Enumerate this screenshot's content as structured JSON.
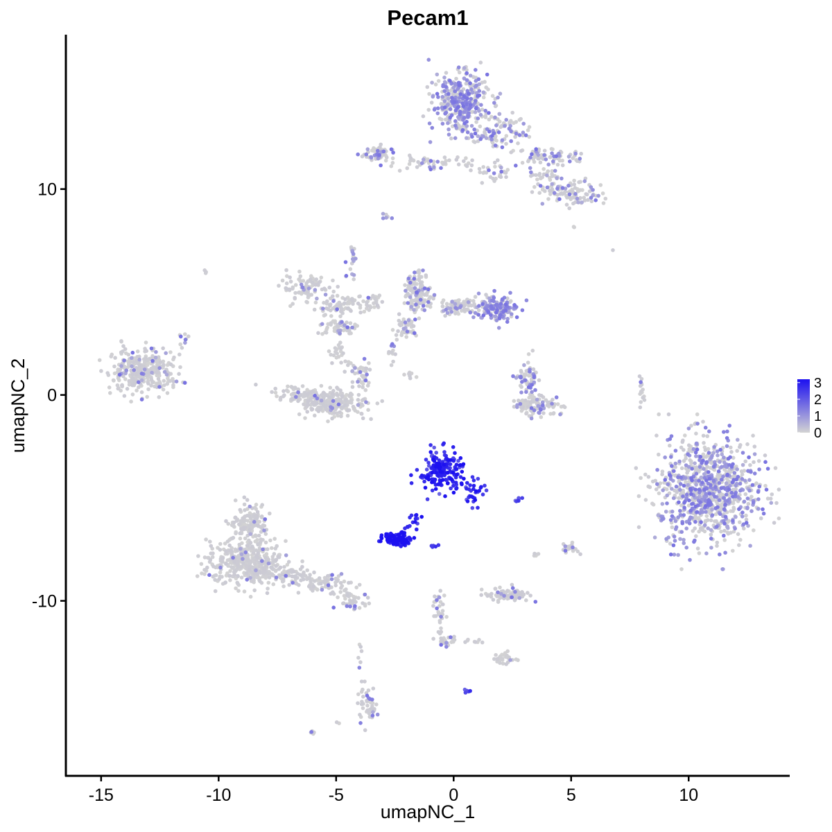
{
  "chart_data": {
    "type": "scatter",
    "title": "Pecam1",
    "xlabel": "umapNC_1",
    "ylabel": "umapNC_2",
    "xlim": [
      -16.5,
      14.3
    ],
    "ylim": [
      -18.5,
      17.5
    ],
    "x_ticks": [
      -15,
      -10,
      -5,
      0,
      5,
      10
    ],
    "x_tick_labels": [
      "-15",
      "-10",
      "-5",
      "0",
      "5",
      "10"
    ],
    "y_ticks": [
      -10,
      0,
      10
    ],
    "y_tick_labels": [
      "-10",
      "0",
      "10"
    ],
    "grid": false,
    "color_scale": {
      "low_color": "#d3d3d3",
      "high_color": "#1c10f0",
      "min": 0,
      "max": 3.2,
      "legend_ticks": [
        3,
        2,
        1,
        0
      ],
      "legend_tick_labels": [
        "3",
        "2",
        "1",
        "0"
      ],
      "legend_position": "right"
    },
    "clusters": [
      {
        "cx": -13.3,
        "cy": 1.2,
        "rx": 1.25,
        "ry": 0.95,
        "n": 320,
        "expr": 0.08
      },
      {
        "cx": -11.5,
        "cy": 2.5,
        "rx": 0.25,
        "ry": 0.4,
        "n": 10,
        "expr": 0.2
      },
      {
        "cx": -6.3,
        "cy": 5.2,
        "rx": 1.0,
        "ry": 0.55,
        "n": 90,
        "expr": 0.05
      },
      {
        "cx": -5.0,
        "cy": 4.3,
        "rx": 0.9,
        "ry": 0.45,
        "n": 70,
        "expr": 0.05
      },
      {
        "cx": -4.8,
        "cy": 3.3,
        "rx": 0.6,
        "ry": 0.35,
        "n": 60,
        "expr": 0.08
      },
      {
        "cx": -3.5,
        "cy": 4.5,
        "rx": 0.5,
        "ry": 0.6,
        "n": 30,
        "expr": 0.12
      },
      {
        "cx": -4.3,
        "cy": 6.6,
        "rx": 0.3,
        "ry": 0.7,
        "n": 20,
        "expr": 0.4
      },
      {
        "cx": -6.5,
        "cy": 0.1,
        "rx": 1.2,
        "ry": 0.35,
        "n": 60,
        "expr": 0.04
      },
      {
        "cx": -5.2,
        "cy": -0.4,
        "rx": 1.35,
        "ry": 0.55,
        "n": 240,
        "expr": 0.04
      },
      {
        "cx": -4.0,
        "cy": 1.0,
        "rx": 0.5,
        "ry": 0.8,
        "n": 45,
        "expr": 0.04
      },
      {
        "cx": -5.0,
        "cy": 1.9,
        "rx": 0.3,
        "ry": 0.6,
        "n": 20,
        "expr": 0.04
      },
      {
        "cx": -1.5,
        "cy": 5.0,
        "rx": 0.55,
        "ry": 0.8,
        "n": 140,
        "expr": 0.15
      },
      {
        "cx": 0.2,
        "cy": 4.3,
        "rx": 0.9,
        "ry": 0.35,
        "n": 100,
        "expr": 0.2
      },
      {
        "cx": 1.9,
        "cy": 4.2,
        "rx": 0.75,
        "ry": 0.6,
        "n": 150,
        "expr": 0.6
      },
      {
        "cx": -2.1,
        "cy": 3.3,
        "rx": 0.6,
        "ry": 0.5,
        "n": 40,
        "expr": 0.2
      },
      {
        "cx": -2.6,
        "cy": 2.2,
        "rx": 0.25,
        "ry": 0.5,
        "n": 12,
        "expr": 0.2
      },
      {
        "cx": -1.8,
        "cy": 1.0,
        "rx": 0.35,
        "ry": 0.2,
        "n": 8,
        "expr": 0.2
      },
      {
        "cx": 0.3,
        "cy": 14.2,
        "rx": 1.05,
        "ry": 1.3,
        "n": 380,
        "expr": 0.5
      },
      {
        "cx": 2.0,
        "cy": 12.8,
        "rx": 1.0,
        "ry": 0.8,
        "n": 90,
        "expr": 0.35
      },
      {
        "cx": 4.1,
        "cy": 11.6,
        "rx": 1.4,
        "ry": 0.35,
        "n": 70,
        "expr": 0.2
      },
      {
        "cx": 5.1,
        "cy": 9.8,
        "rx": 1.1,
        "ry": 0.55,
        "n": 100,
        "expr": 0.25
      },
      {
        "cx": 3.8,
        "cy": 10.5,
        "rx": 0.6,
        "ry": 0.6,
        "n": 40,
        "expr": 0.15
      },
      {
        "cx": -3.3,
        "cy": 11.7,
        "rx": 0.6,
        "ry": 0.35,
        "n": 60,
        "expr": 0.25
      },
      {
        "cx": -1.0,
        "cy": 11.2,
        "rx": 1.6,
        "ry": 0.3,
        "n": 50,
        "expr": 0.2
      },
      {
        "cx": 1.8,
        "cy": 10.8,
        "rx": 0.9,
        "ry": 0.8,
        "n": 30,
        "expr": 0.15
      },
      {
        "cx": -2.8,
        "cy": 8.6,
        "rx": 0.15,
        "ry": 0.2,
        "n": 6,
        "expr": 0.8
      },
      {
        "cx": 3.5,
        "cy": -0.5,
        "rx": 1.0,
        "ry": 0.4,
        "n": 110,
        "expr": 0.15
      },
      {
        "cx": 3.3,
        "cy": 0.8,
        "rx": 0.35,
        "ry": 0.9,
        "n": 50,
        "expr": 0.25
      },
      {
        "cx": 2.9,
        "cy": 0.9,
        "rx": 0.25,
        "ry": 0.35,
        "n": 15,
        "expr": 0.45
      },
      {
        "cx": 8.0,
        "cy": 0.2,
        "rx": 0.15,
        "ry": 0.7,
        "n": 15,
        "expr": 0.05
      },
      {
        "cx": 10.8,
        "cy": -4.7,
        "rx": 1.9,
        "ry": 2.35,
        "n": 900,
        "expr": 0.42
      },
      {
        "cx": -0.5,
        "cy": -3.7,
        "rx": 0.85,
        "ry": 0.9,
        "n": 190,
        "expr": 2.75
      },
      {
        "cx": 0.9,
        "cy": -4.8,
        "rx": 0.35,
        "ry": 0.6,
        "n": 30,
        "expr": 2.6
      },
      {
        "cx": -2.4,
        "cy": -7.0,
        "rx": 0.55,
        "ry": 0.28,
        "n": 110,
        "expr": 3.1
      },
      {
        "cx": -1.7,
        "cy": -6.3,
        "rx": 0.25,
        "ry": 0.5,
        "n": 15,
        "expr": 2.9
      },
      {
        "cx": 2.8,
        "cy": -5.1,
        "rx": 0.25,
        "ry": 0.12,
        "n": 8,
        "expr": 2.0
      },
      {
        "cx": -0.8,
        "cy": -7.3,
        "rx": 0.15,
        "ry": 0.15,
        "n": 5,
        "expr": 2.3
      },
      {
        "cx": -8.8,
        "cy": -8.2,
        "rx": 1.5,
        "ry": 1.0,
        "n": 400,
        "expr": 0.03
      },
      {
        "cx": -8.7,
        "cy": -6.2,
        "rx": 0.75,
        "ry": 0.9,
        "n": 130,
        "expr": 0.03
      },
      {
        "cx": -5.5,
        "cy": -9.2,
        "rx": 1.0,
        "ry": 0.45,
        "n": 70,
        "expr": 0.06
      },
      {
        "cx": -4.3,
        "cy": -10.0,
        "rx": 0.7,
        "ry": 0.3,
        "n": 40,
        "expr": 0.1
      },
      {
        "cx": -6.9,
        "cy": -8.8,
        "rx": 0.7,
        "ry": 0.45,
        "n": 60,
        "expr": 0.05
      },
      {
        "cx": 2.3,
        "cy": -9.7,
        "rx": 0.9,
        "ry": 0.3,
        "n": 80,
        "expr": 0.12
      },
      {
        "cx": 5.0,
        "cy": -7.5,
        "rx": 0.3,
        "ry": 0.25,
        "n": 20,
        "expr": 0.04
      },
      {
        "cx": 3.5,
        "cy": -7.7,
        "rx": 0.15,
        "ry": 0.15,
        "n": 5,
        "expr": 0.05
      },
      {
        "cx": -0.6,
        "cy": -10.5,
        "rx": 0.25,
        "ry": 0.9,
        "n": 30,
        "expr": 0.04
      },
      {
        "cx": -0.3,
        "cy": -11.9,
        "rx": 0.35,
        "ry": 0.4,
        "n": 25,
        "expr": 0.25
      },
      {
        "cx": 2.2,
        "cy": -12.8,
        "rx": 0.45,
        "ry": 0.25,
        "n": 30,
        "expr": 0.05
      },
      {
        "cx": 0.8,
        "cy": -12.0,
        "rx": 0.6,
        "ry": 0.15,
        "n": 8,
        "expr": 0.05
      },
      {
        "cx": -3.7,
        "cy": -15.0,
        "rx": 0.35,
        "ry": 0.8,
        "n": 45,
        "expr": 0.15
      },
      {
        "cx": -4.0,
        "cy": -12.6,
        "rx": 0.1,
        "ry": 0.6,
        "n": 6,
        "expr": 0.05
      },
      {
        "cx": 0.6,
        "cy": -14.4,
        "rx": 0.12,
        "ry": 0.1,
        "n": 5,
        "expr": 2.3
      },
      {
        "cx": -6.0,
        "cy": -16.4,
        "rx": 0.2,
        "ry": 0.12,
        "n": 6,
        "expr": 0.05
      },
      {
        "cx": -10.6,
        "cy": 6.0,
        "rx": 0.1,
        "ry": 0.1,
        "n": 3,
        "expr": 0.05
      },
      {
        "cx": 6.8,
        "cy": 7.1,
        "rx": 0.05,
        "ry": 0.05,
        "n": 1,
        "expr": 0.05
      },
      {
        "cx": 5.1,
        "cy": 8.2,
        "rx": 0.08,
        "ry": 0.08,
        "n": 2,
        "expr": 0.05
      },
      {
        "cx": -4.9,
        "cy": -15.9,
        "rx": 0.1,
        "ry": 0.1,
        "n": 2,
        "expr": 0.05
      }
    ]
  }
}
